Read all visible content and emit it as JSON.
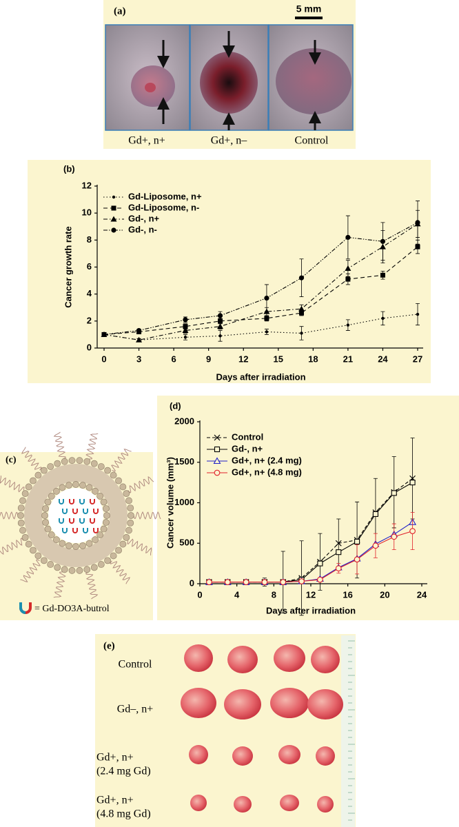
{
  "panel_a": {
    "label": "(a)",
    "scale_bar": "5 mm",
    "captions": [
      "Gd+, n+",
      "Gd+, n–",
      "Control"
    ]
  },
  "chart_data": [
    {
      "type": "line",
      "label": "(b)",
      "x_label": "Days after irradiation",
      "y_label": "Cancer growth rate",
      "x": [
        0,
        3,
        7,
        10,
        14,
        17,
        21,
        24,
        27
      ],
      "xlim": [
        0,
        27
      ],
      "xticks": [
        0,
        3,
        6,
        9,
        12,
        15,
        18,
        21,
        24,
        27
      ],
      "ylim": [
        0,
        12
      ],
      "yticks": [
        0,
        2,
        4,
        6,
        8,
        10,
        12
      ],
      "series": [
        {
          "name": "Gd-Liposome, n+",
          "color": "#000000",
          "dash": "1.5,3",
          "marker": "circle-small",
          "values": [
            1,
            0.6,
            0.8,
            0.9,
            1.2,
            1.1,
            1.7,
            2.2,
            2.5
          ],
          "errors": [
            0.1,
            0.1,
            0.2,
            0.4,
            0.2,
            0.5,
            0.4,
            0.5,
            0.8
          ]
        },
        {
          "name": "Gd-Liposome, n-",
          "color": "#000000",
          "dash": "6,4",
          "marker": "square",
          "values": [
            1,
            1.2,
            1.6,
            2.0,
            2.2,
            2.6,
            5.1,
            5.4,
            7.5
          ],
          "errors": [
            0.1,
            0.1,
            0.2,
            0.2,
            0.2,
            0.2,
            0.4,
            0.3,
            0.5
          ]
        },
        {
          "name": "Gd-, n+",
          "color": "#000000",
          "dash": "6,3,1.5,3",
          "marker": "triangle",
          "values": [
            1,
            0.6,
            1.3,
            1.6,
            2.7,
            2.9,
            5.9,
            7.5,
            9.2
          ],
          "errors": [
            0.1,
            0.1,
            0.2,
            0.2,
            0.3,
            0.3,
            0.6,
            1.2,
            1.0
          ]
        },
        {
          "name": "Gd-, n-",
          "color": "#000000",
          "dash": "6,2,1.5,2,1.5,2",
          "marker": "circle",
          "values": [
            1,
            1.3,
            2.1,
            2.4,
            3.7,
            5.2,
            8.2,
            7.9,
            9.3
          ],
          "errors": [
            0.1,
            0.1,
            0.2,
            0.3,
            1.0,
            1.4,
            1.6,
            1.4,
            1.6
          ]
        }
      ]
    },
    {
      "type": "line",
      "label": "(d)",
      "x_label": "Days after irradiation",
      "y_label": "Cancer volume (mm³)",
      "x": [
        1,
        3,
        5,
        7,
        9,
        11,
        13,
        15,
        17,
        19,
        21,
        23
      ],
      "xlim": [
        0,
        24
      ],
      "xticks": [
        0,
        4,
        8,
        12,
        16,
        20,
        24
      ],
      "ylim": [
        0,
        2000
      ],
      "yticks": [
        0,
        500,
        1000,
        1500,
        2000
      ],
      "series": [
        {
          "name": "Control",
          "color": "#000000",
          "dash": "5,3",
          "marker": "x",
          "values": [
            20,
            20,
            20,
            20,
            20,
            70,
            270,
            500,
            540,
            880,
            1130,
            1300
          ],
          "errors": [
            0,
            0,
            0,
            50,
            380,
            460,
            350,
            300,
            470,
            420,
            440,
            500
          ]
        },
        {
          "name": "Gd-, n+",
          "color": "#000000",
          "dash": "none",
          "marker": "open-square",
          "values": [
            20,
            20,
            20,
            20,
            20,
            50,
            250,
            390,
            520,
            860,
            1120,
            1250
          ]
        },
        {
          "name": "Gd+, n+ (2.4 mg)",
          "color": "#2020c8",
          "dash": "none",
          "marker": "open-triangle",
          "values": [
            20,
            20,
            20,
            20,
            20,
            30,
            60,
            200,
            310,
            490,
            610,
            760
          ]
        },
        {
          "name": "Gd+, n+ (4.8 mg)",
          "color": "#e0202a",
          "dash": "none",
          "marker": "open-circle",
          "values": [
            20,
            20,
            20,
            20,
            20,
            30,
            50,
            190,
            300,
            470,
            580,
            650
          ],
          "errors": [
            0,
            0,
            0,
            0,
            0,
            0,
            0,
            60,
            180,
            150,
            160,
            230
          ]
        }
      ]
    }
  ],
  "panel_c": {
    "label": "(c)",
    "legend_text": "= Gd-DO3A-butrol"
  },
  "panel_e": {
    "label": "(e)",
    "rows": [
      [
        "Control"
      ],
      [
        "Gd–, n+"
      ],
      [
        "Gd+, n+",
        "(2.4 mg Gd)"
      ],
      [
        "Gd+, n+",
        "(4.8 mg Gd)"
      ]
    ]
  }
}
